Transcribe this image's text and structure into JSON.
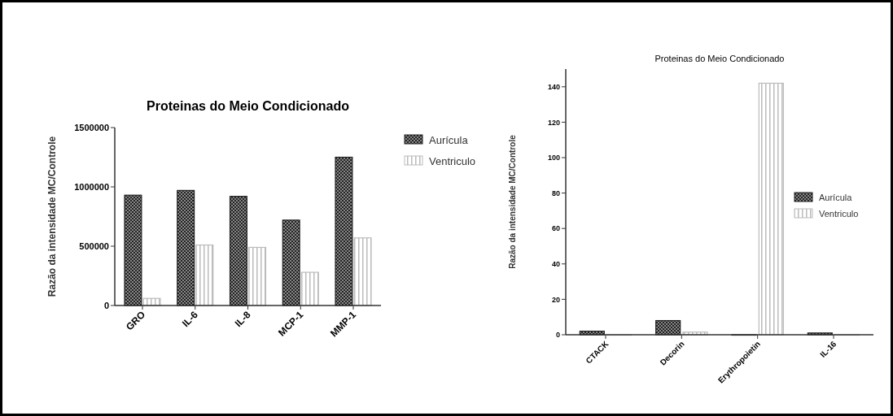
{
  "chart_data": [
    {
      "type": "bar",
      "title": "Proteinas do Meio Condicionado",
      "ylabel": "Razão da intensidade MC/Controle",
      "categories": [
        "GRO",
        "IL-6",
        "IL-8",
        "MCP-1",
        "MMP-1"
      ],
      "series": [
        {
          "name": "Aurícula",
          "color": "#222222",
          "values": [
            930000,
            970000,
            920000,
            720000,
            1250000
          ]
        },
        {
          "name": "Ventriculo",
          "color": "#bbbbbb",
          "values": [
            60000,
            510000,
            490000,
            280000,
            570000
          ]
        }
      ],
      "ylim": [
        0,
        1500000
      ],
      "yticks": [
        0,
        500000,
        1000000,
        1500000
      ],
      "legend": "top right"
    },
    {
      "type": "bar",
      "title": "Proteinas do Meio Condicionado",
      "ylabel": "Razão da intensidade MC/Controle",
      "categories": [
        "CTACK",
        "Decorin",
        "Erythropoietin",
        "IL-16"
      ],
      "series": [
        {
          "name": "Aurícula",
          "color": "#222222",
          "values": [
            2,
            8,
            0,
            1
          ]
        },
        {
          "name": "Ventriculo",
          "color": "#bbbbbb",
          "values": [
            0,
            1.5,
            142,
            0
          ]
        }
      ],
      "ylim": [
        0,
        150
      ],
      "yticks": [
        0,
        20,
        40,
        60,
        80,
        100,
        120,
        140
      ],
      "legend": "right"
    }
  ]
}
